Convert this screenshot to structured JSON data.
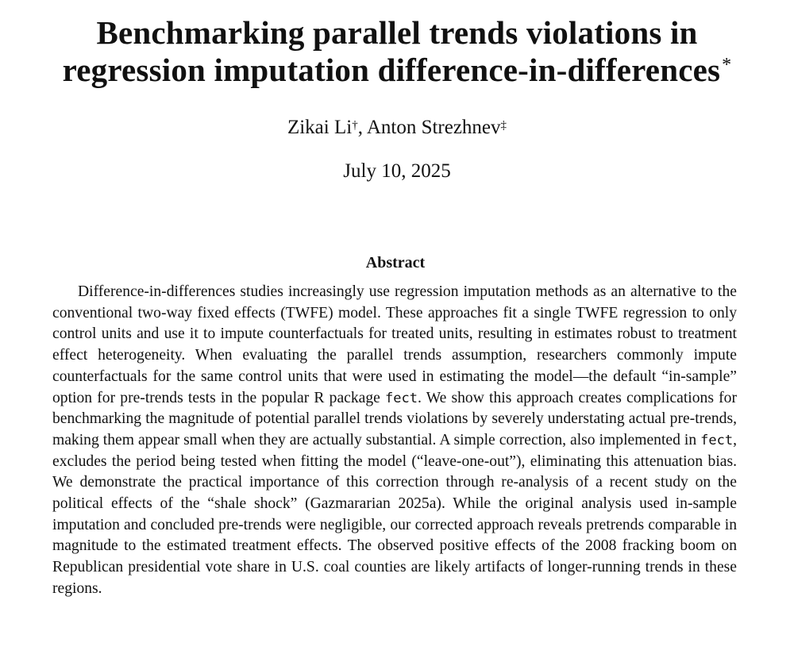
{
  "paper": {
    "title": "Benchmarking parallel trends violations in regression imputation difference-in-differences",
    "title_line1": "Benchmarking parallel trends violations in",
    "title_line2": "regression imputation difference-in-differences",
    "title_mark": "*",
    "authors": [
      {
        "name": "Zikai Li",
        "mark": "†"
      },
      {
        "name": "Anton Strezhnev",
        "mark": "‡"
      }
    ],
    "author_separator": ", ",
    "date": "July 10, 2025"
  },
  "abstract": {
    "heading": "Abstract",
    "segments": [
      {
        "text": "Difference-in-differences studies increasingly use regression imputation methods as an al­ternative to the conventional two-way fixed effects (TWFE) model.  These approaches fit a single TWFE regression to only control units and use it to impute counterfactuals for treated units, resulting in estimates robust to treatment effect heterogeneity. When evalu­ating the parallel trends assumption, researchers commonly impute counterfactuals for the same control units that were used in estimating the model—the default “in-sample” option for pre-trends tests in the popular R package "
      },
      {
        "text": "fect",
        "code": true
      },
      {
        "text": ". We show this approach creates compli­cations for benchmarking the magnitude of potential parallel trends violations by severely understating actual pre-trends, making them appear small when they are actually substan­tial.  A simple correction, also implemented in "
      },
      {
        "text": "fect",
        "code": true
      },
      {
        "text": ", excludes the period being tested when fitting the model (“leave-one-out”), eliminating this attenuation bias.  We demonstrate the practical importance of this correction through re-analysis of a recent study on the political effects of the “shale shock” (Gazmararian 2025a). While the original analysis used in-sample imputation and concluded pre-trends were negligible, our corrected approach reveals pre­trends comparable in magnitude to the estimated treatment effects.  The observed positive effects of the 2008 fracking boom on Republican presidential vote share in U.S. coal counties are likely artifacts of longer-running trends in these regions."
      }
    ]
  }
}
